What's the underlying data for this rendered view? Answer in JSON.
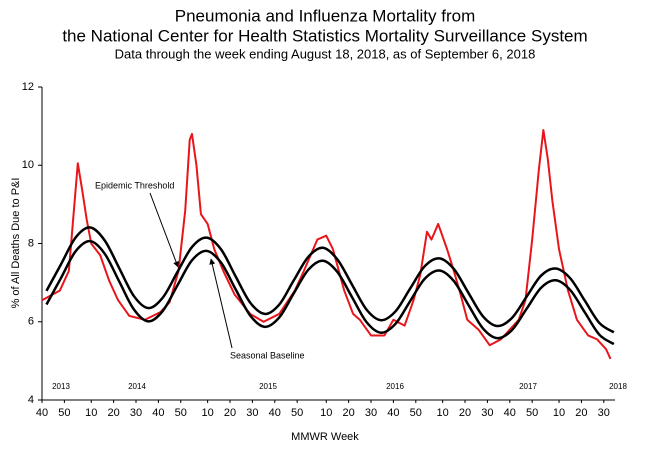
{
  "chart_data": {
    "type": "line",
    "title": [
      "Pneumonia and Influenza Mortality from",
      "the National Center for Health Statistics Mortality Surveillance System"
    ],
    "subtitle": "Data through the week ending August 18, 2018, as of September 6, 2018",
    "x_label": "MMWR Week",
    "y_label": "% of All Deaths Due to P&I",
    "year_labels": [
      "2013",
      "2014",
      "2015",
      "2016",
      "2017",
      "2018"
    ],
    "xlim": [
      0,
      256
    ],
    "xticks": [
      {
        "value": 0,
        "label": "40"
      },
      {
        "value": 10,
        "label": "50"
      },
      {
        "value": 22,
        "label": "10"
      },
      {
        "value": 32,
        "label": "20"
      },
      {
        "value": 42,
        "label": "30"
      },
      {
        "value": 52,
        "label": "40"
      },
      {
        "value": 62,
        "label": "50"
      },
      {
        "value": 74,
        "label": "10"
      },
      {
        "value": 84,
        "label": "20"
      },
      {
        "value": 94,
        "label": "30"
      },
      {
        "value": 104,
        "label": "40"
      },
      {
        "value": 114,
        "label": "50"
      },
      {
        "value": 127,
        "label": "10"
      },
      {
        "value": 137,
        "label": "20"
      },
      {
        "value": 147,
        "label": "30"
      },
      {
        "value": 157,
        "label": "40"
      },
      {
        "value": 167,
        "label": "50"
      },
      {
        "value": 179,
        "label": "10"
      },
      {
        "value": 189,
        "label": "20"
      },
      {
        "value": 199,
        "label": "30"
      },
      {
        "value": 209,
        "label": "40"
      },
      {
        "value": 219,
        "label": "50"
      },
      {
        "value": 231,
        "label": "10"
      },
      {
        "value": 241,
        "label": "20"
      },
      {
        "value": 251,
        "label": "30"
      }
    ],
    "ylim": [
      4,
      12
    ],
    "yticks": [
      4,
      6,
      8,
      10,
      12
    ],
    "series": [
      {
        "name": "Epidemic Threshold",
        "color": "#000000",
        "smooth": true,
        "x": [
          2,
          8.5,
          15,
          21.5,
          28,
          34.5,
          41,
          47.5,
          54,
          60.5,
          67,
          73.5,
          80,
          86.5,
          93,
          99.5,
          106,
          112.5,
          119,
          125.5,
          132,
          138.5,
          145,
          151.5,
          158,
          164.5,
          171,
          177.5,
          184,
          190.5,
          197,
          203.5,
          210,
          216.5,
          223,
          229.5,
          236,
          242.5,
          249,
          255.5
        ],
        "values": [
          6.79,
          7.47,
          8.15,
          8.41,
          8.08,
          7.37,
          6.66,
          6.35,
          6.62,
          7.27,
          7.91,
          8.15,
          7.85,
          7.16,
          6.49,
          6.2,
          6.44,
          7.06,
          7.66,
          7.89,
          7.59,
          6.95,
          6.31,
          6.04,
          6.27,
          6.85,
          7.42,
          7.62,
          7.35,
          6.74,
          6.14,
          5.89,
          6.1,
          6.64,
          7.18,
          7.36,
          7.11,
          6.54,
          5.97,
          5.73
        ]
      },
      {
        "name": "Seasonal Baseline",
        "color": "#000000",
        "smooth": true,
        "x": [
          2,
          8.5,
          15,
          21.5,
          28,
          34.5,
          41,
          47.5,
          54,
          60.5,
          67,
          73.5,
          80,
          86.5,
          93,
          99.5,
          106,
          112.5,
          119,
          125.5,
          132,
          138.5,
          145,
          151.5,
          158,
          164.5,
          171,
          177.5,
          184,
          190.5,
          197,
          203.5,
          210,
          216.5,
          223,
          229.5,
          236,
          242.5,
          249,
          255.5
        ],
        "values": [
          6.44,
          7.12,
          7.8,
          8.06,
          7.74,
          7.03,
          6.32,
          6.01,
          6.28,
          6.93,
          7.57,
          7.81,
          7.51,
          6.83,
          6.16,
          5.87,
          6.11,
          6.73,
          7.33,
          7.56,
          7.27,
          6.63,
          5.99,
          5.72,
          5.95,
          6.53,
          7.1,
          7.31,
          7.04,
          6.43,
          5.83,
          5.58,
          5.79,
          6.33,
          6.87,
          7.06,
          6.81,
          6.24,
          5.67,
          5.43
        ]
      },
      {
        "color": "#e8161b",
        "smooth": false,
        "x": [
          0,
          8,
          12,
          16,
          18,
          20,
          22,
          26,
          30,
          34,
          39,
          46,
          53,
          57,
          61,
          64,
          66,
          67,
          69,
          71,
          74,
          77,
          81,
          86,
          93,
          99,
          106,
          113,
          117,
          123,
          127,
          130,
          135,
          139,
          142,
          147,
          153,
          157,
          162,
          166,
          169,
          172,
          174,
          177,
          181,
          184,
          187,
          190,
          195,
          200,
          205,
          209,
          213,
          216,
          219,
          222,
          224,
          226,
          228,
          231,
          235,
          239,
          244,
          248,
          252,
          254
        ],
        "values": [
          6.55,
          6.8,
          7.3,
          10.05,
          9.35,
          8.6,
          8.0,
          7.7,
          7.05,
          6.55,
          6.15,
          6.05,
          6.25,
          6.5,
          7.3,
          8.85,
          10.65,
          10.8,
          10.0,
          8.75,
          8.5,
          7.85,
          7.3,
          6.7,
          6.2,
          6.0,
          6.2,
          6.8,
          7.3,
          8.1,
          8.2,
          7.85,
          6.8,
          6.2,
          6.05,
          5.65,
          5.65,
          6.05,
          5.9,
          6.55,
          7.2,
          8.3,
          8.1,
          8.5,
          7.85,
          7.3,
          6.7,
          6.05,
          5.8,
          5.4,
          5.55,
          5.8,
          6.05,
          6.55,
          8.1,
          9.9,
          10.9,
          10.15,
          9.1,
          7.85,
          6.8,
          6.05,
          5.65,
          5.55,
          5.3,
          5.05
        ]
      }
    ]
  }
}
